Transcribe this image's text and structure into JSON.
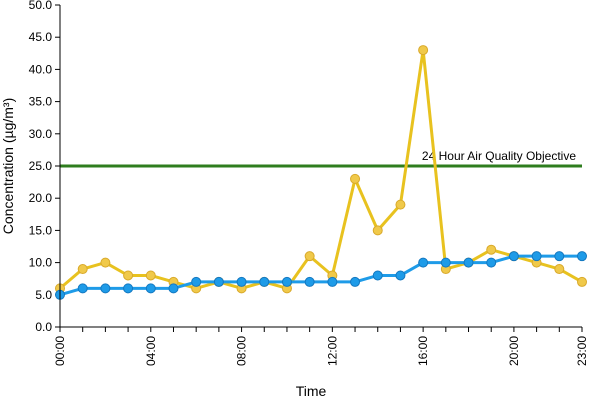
{
  "chart_data": {
    "type": "line",
    "title": "",
    "xlabel": "Time",
    "ylabel": "Concentration (µg/m³)",
    "ylim": [
      0,
      50
    ],
    "yticks": [
      "0.0",
      "5.0",
      "10.0",
      "15.0",
      "20.0",
      "25.0",
      "30.0",
      "35.0",
      "40.0",
      "45.0",
      "50.0"
    ],
    "x": [
      "00:00",
      "01:00",
      "02:00",
      "03:00",
      "04:00",
      "05:00",
      "06:00",
      "07:00",
      "08:00",
      "09:00",
      "10:00",
      "11:00",
      "12:00",
      "13:00",
      "14:00",
      "15:00",
      "16:00",
      "17:00",
      "18:00",
      "19:00",
      "20:00",
      "21:00",
      "22:00",
      "23:00"
    ],
    "xtick_labels": [
      "00:00",
      "04:00",
      "08:00",
      "12:00",
      "16:00",
      "20:00",
      "23:00"
    ],
    "grid": false,
    "series": [
      {
        "color": "#e8c21f",
        "marker_fill": "#f0c94a",
        "values": [
          6,
          9,
          10,
          8,
          8,
          7,
          6,
          7,
          6,
          7,
          6,
          11,
          8,
          23,
          15,
          19,
          43,
          9,
          10,
          12,
          11,
          10,
          9,
          7
        ]
      },
      {
        "color": "#1e9be8",
        "marker_fill": "#1e9be8",
        "values": [
          5,
          6,
          6,
          6,
          6,
          6,
          7,
          7,
          7,
          7,
          7,
          7,
          7,
          7,
          8,
          8,
          10,
          10,
          10,
          10,
          11,
          11,
          11,
          11
        ]
      }
    ],
    "reference_line": {
      "label": "24 Hour Air Quality Objective",
      "value": 25,
      "color": "#2e7d1e"
    }
  }
}
